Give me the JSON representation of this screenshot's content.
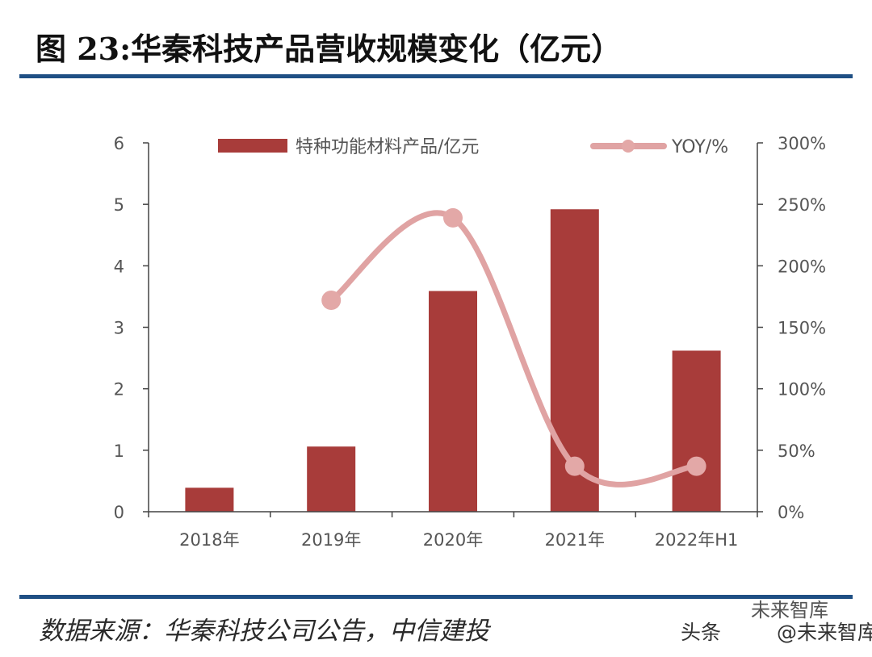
{
  "header": {
    "title": "图 23:华秦科技产品营收规模变化（亿元）"
  },
  "footer": {
    "source": "数据来源：华秦科技公司公告，中信建投",
    "watermark_platform": "头条",
    "watermark_account": "@未来智库",
    "watermark_wechat": "未来智库"
  },
  "colors": {
    "bar": "#a83c3a",
    "line": "#e0a3a3",
    "marker": "#e3a8a7",
    "rule": "#1f4f84",
    "axis": "#444444"
  },
  "chart_data": {
    "type": "bar",
    "title": "",
    "categories": [
      "2018年",
      "2019年",
      "2020年",
      "2021年",
      "2022年H1"
    ],
    "series": [
      {
        "name": "特种功能材料产品/亿元",
        "type": "bar",
        "axis": "left",
        "values": [
          0.39,
          1.06,
          3.59,
          4.92,
          2.62
        ]
      },
      {
        "name": "YOY/%",
        "type": "line",
        "axis": "right",
        "values": [
          null,
          172,
          239,
          37,
          37
        ]
      }
    ],
    "y_left": {
      "min": 0,
      "max": 6,
      "ticks": [
        "0",
        "1",
        "2",
        "3",
        "4",
        "5",
        "6"
      ]
    },
    "y_right": {
      "min": 0,
      "max": 300,
      "ticks": [
        "0%",
        "50%",
        "100%",
        "150%",
        "200%",
        "250%",
        "300%"
      ]
    },
    "legend_position": "top"
  }
}
